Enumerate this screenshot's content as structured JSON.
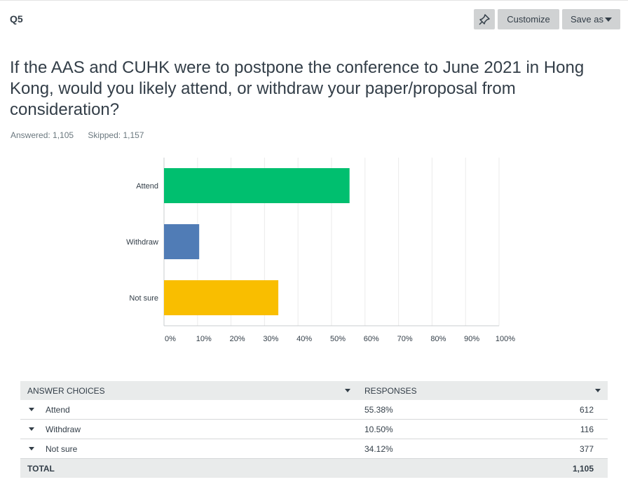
{
  "header": {
    "question_number": "Q5",
    "pin_icon": "pushpin-icon",
    "customize_label": "Customize",
    "save_as_label": "Save as"
  },
  "question": {
    "title": "If the AAS and CUHK were to postpone the conference to June 2021 in Hong Kong, would you likely attend, or withdraw your paper/proposal from consideration?",
    "answered": "Answered: 1,105",
    "skipped": "Skipped: 1,157"
  },
  "chart_data": {
    "type": "bar",
    "orientation": "horizontal",
    "title": "",
    "xlabel": "",
    "ylabel": "",
    "categories": [
      "Attend",
      "Withdraw",
      "Not sure"
    ],
    "values": [
      55.38,
      10.5,
      34.12
    ],
    "colors": [
      "#00bf6f",
      "#507cb6",
      "#f9be00"
    ],
    "xlim": [
      0,
      100
    ],
    "x_ticks": [
      "0%",
      "10%",
      "20%",
      "30%",
      "40%",
      "50%",
      "60%",
      "70%",
      "80%",
      "90%",
      "100%"
    ],
    "grid": true
  },
  "table": {
    "headers": [
      "ANSWER CHOICES",
      "RESPONSES"
    ],
    "rows": [
      {
        "choice": "Attend",
        "percent": "55.38%",
        "count": "612"
      },
      {
        "choice": "Withdraw",
        "percent": "10.50%",
        "count": "116"
      },
      {
        "choice": "Not sure",
        "percent": "34.12%",
        "count": "377"
      }
    ],
    "total_label": "TOTAL",
    "total_count": "1,105"
  }
}
